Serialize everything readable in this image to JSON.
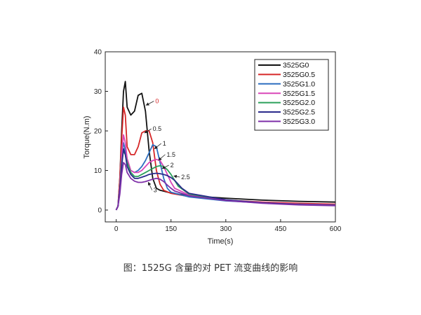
{
  "caption": "图：1525G 含量的对 PET 流变曲线的影响",
  "chart_data": {
    "type": "line",
    "xlabel": "Time(s)",
    "ylabel": "Torque(N.m)",
    "xlim": [
      -30,
      600
    ],
    "ylim": [
      -3,
      40
    ],
    "xticks": [
      0,
      150,
      300,
      450,
      600
    ],
    "yticks": [
      0,
      10,
      20,
      30,
      40
    ],
    "grid": false,
    "legend_position": "top-right",
    "series": [
      {
        "name": "3525G0",
        "color": "#111111",
        "x": [
          0,
          5,
          10,
          15,
          20,
          25,
          30,
          40,
          50,
          60,
          70,
          80,
          90,
          100,
          110,
          120,
          150,
          200,
          300,
          400,
          500,
          600
        ],
        "y": [
          0,
          1,
          8,
          20,
          30,
          32.5,
          26,
          24,
          25,
          29,
          29.5,
          25,
          15,
          8,
          5.5,
          5,
          4.3,
          3.6,
          3,
          2.5,
          2.2,
          2
        ]
      },
      {
        "name": "3525G0.5",
        "color": "#d62728",
        "x": [
          0,
          5,
          10,
          15,
          20,
          25,
          30,
          40,
          50,
          60,
          70,
          80,
          90,
          100,
          110,
          120,
          130,
          150,
          200,
          300,
          400,
          500,
          600
        ],
        "y": [
          0,
          1,
          8,
          18,
          26,
          24,
          16,
          14,
          14,
          16,
          19.5,
          20,
          20,
          17,
          10,
          6.5,
          5,
          4.2,
          3.4,
          2.5,
          2,
          1.7,
          1.5
        ]
      },
      {
        "name": "3525G1.0",
        "color": "#2e6fc0",
        "x": [
          0,
          5,
          10,
          15,
          20,
          25,
          30,
          40,
          50,
          60,
          70,
          80,
          90,
          100,
          110,
          120,
          130,
          140,
          150,
          200,
          300,
          400,
          500,
          600
        ],
        "y": [
          0,
          1,
          6,
          14,
          17,
          15,
          12,
          10,
          9.5,
          10,
          11,
          12.5,
          14.5,
          16.5,
          16,
          12,
          8,
          5.5,
          4.5,
          3.3,
          2.3,
          1.8,
          1.5,
          1.3
        ]
      },
      {
        "name": "3525G1.5",
        "color": "#d946b8",
        "x": [
          0,
          5,
          10,
          15,
          20,
          25,
          30,
          40,
          50,
          60,
          70,
          80,
          90,
          100,
          110,
          120,
          130,
          140,
          150,
          160,
          200,
          300,
          400,
          500,
          600
        ],
        "y": [
          0,
          1,
          6,
          14,
          19,
          17,
          13,
          10,
          9.5,
          9.5,
          10,
          11,
          12,
          12.5,
          12.8,
          12.5,
          11,
          9,
          7,
          5.5,
          3.8,
          2.5,
          1.9,
          1.5,
          1.3
        ]
      },
      {
        "name": "3525G2.0",
        "color": "#2ca05a",
        "x": [
          0,
          5,
          10,
          15,
          20,
          25,
          30,
          40,
          50,
          60,
          70,
          80,
          90,
          100,
          110,
          120,
          130,
          140,
          150,
          160,
          170,
          200,
          300,
          400,
          500,
          600
        ],
        "y": [
          0,
          1,
          5,
          12,
          15,
          14,
          12,
          9.5,
          8.5,
          8.5,
          9,
          9.5,
          10,
          10.5,
          11,
          11.2,
          11,
          10.2,
          9,
          7.5,
          6,
          4,
          2.5,
          1.8,
          1.4,
          1.2
        ]
      },
      {
        "name": "3525G2.5",
        "color": "#2a2a8c",
        "x": [
          0,
          5,
          10,
          15,
          20,
          25,
          30,
          40,
          50,
          60,
          70,
          80,
          90,
          100,
          110,
          120,
          130,
          140,
          150,
          160,
          170,
          180,
          200,
          300,
          400,
          500,
          600
        ],
        "y": [
          0,
          1,
          5,
          11,
          15.5,
          14,
          11,
          9,
          8,
          8,
          8.3,
          8.6,
          9,
          9.2,
          9.3,
          9.2,
          9,
          8.7,
          8.2,
          7.5,
          6.5,
          5.5,
          4.2,
          2.6,
          1.8,
          1.4,
          1.2
        ]
      },
      {
        "name": "3525G3.0",
        "color": "#7e2fa8",
        "x": [
          0,
          5,
          10,
          15,
          20,
          25,
          30,
          40,
          50,
          60,
          70,
          80,
          90,
          100,
          110,
          120,
          130,
          140,
          150,
          160,
          200,
          300,
          400,
          500,
          600
        ],
        "y": [
          0,
          1,
          4,
          9,
          12,
          11.5,
          9.5,
          8,
          7.3,
          7,
          7,
          7.2,
          7.5,
          7.8,
          8,
          7.8,
          7.2,
          6.3,
          5.5,
          4.8,
          3.6,
          2.4,
          1.7,
          1.3,
          1.1
        ]
      }
    ],
    "annotations": [
      {
        "text": "0",
        "x": 107,
        "y": 27,
        "color": "#d62728",
        "arrow_to": [
          82,
          26.5
        ]
      },
      {
        "text": "0.5",
        "x": 100,
        "y": 20,
        "color": "#222222",
        "arrow_to": [
          78,
          19.5
        ]
      },
      {
        "text": "1",
        "x": 127,
        "y": 16.3,
        "color": "#222222",
        "arrow_to": [
          105,
          15.5
        ]
      },
      {
        "text": "1.5",
        "x": 138,
        "y": 13.5,
        "color": "#222222",
        "arrow_to": [
          116,
          12.6
        ]
      },
      {
        "text": "2",
        "x": 148,
        "y": 10.8,
        "color": "#222222",
        "arrow_to": [
          126,
          10.5
        ]
      },
      {
        "text": "2.5",
        "x": 178,
        "y": 7.8,
        "color": "#222222",
        "arrow_to": [
          158,
          8.6
        ]
      },
      {
        "text": "3",
        "x": 102,
        "y": 4.5,
        "color": "#222222",
        "arrow_to": [
          88,
          7.0
        ]
      }
    ]
  }
}
